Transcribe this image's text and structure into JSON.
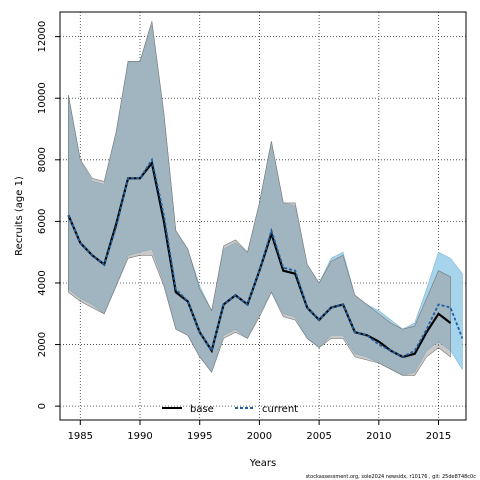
{
  "chart_data": {
    "type": "line",
    "title": "",
    "xlabel": "Years",
    "ylabel": "Recruits (age 1)",
    "xlim": [
      1983.3,
      2017.3
    ],
    "ylim": [
      -450,
      12800
    ],
    "x_ticks": [
      1985,
      1990,
      1995,
      2000,
      2005,
      2010,
      2015
    ],
    "x_tick_labels": [
      "1985",
      "1990",
      "1995",
      "2000",
      "2005",
      "2010",
      "2015"
    ],
    "y_ticks": [
      0,
      2000,
      4000,
      6000,
      8000,
      10000,
      12000
    ],
    "y_tick_labels": [
      "0",
      "2000",
      "4000",
      "6000",
      "8000",
      "10000",
      "12000"
    ],
    "grid": true,
    "legend": {
      "position": "bottom-center",
      "entries": [
        "base",
        "current"
      ]
    },
    "colors": {
      "base_line": "#000000",
      "base_band": "#9a9a9a",
      "current_line": "#1f5fa0",
      "current_band": "#a6d4ec",
      "overlap_band": "#8fb0c4",
      "grid": "#333333"
    },
    "series": [
      {
        "name": "base",
        "x": [
          1984,
          1985,
          1986,
          1987,
          1988,
          1989,
          1990,
          1991,
          1992,
          1993,
          1994,
          1995,
          1996,
          1997,
          1998,
          1999,
          2000,
          2001,
          2002,
          2003,
          2004,
          2005,
          2006,
          2007,
          2008,
          2009,
          2010,
          2011,
          2012,
          2013,
          2014,
          2015,
          2016
        ],
        "values": [
          6200,
          5300,
          4900,
          4600,
          5900,
          7400,
          7400,
          7900,
          6000,
          3700,
          3400,
          2400,
          1800,
          3300,
          3600,
          3300,
          4400,
          5600,
          4400,
          4300,
          3200,
          2800,
          3200,
          3300,
          2400,
          2300,
          2100,
          1800,
          1600,
          1700,
          2400,
          3000,
          2700
        ],
        "upper": [
          10100,
          8000,
          7400,
          7300,
          8900,
          11200,
          11200,
          12500,
          9500,
          5700,
          5100,
          3800,
          3100,
          5200,
          5400,
          5000,
          6600,
          8600,
          6600,
          6600,
          4600,
          4000,
          4700,
          4900,
          3600,
          3300,
          3000,
          2700,
          2500,
          2600,
          3500,
          4400,
          4200
        ],
        "lower": [
          3700,
          3400,
          3200,
          3000,
          3900,
          4800,
          4900,
          4900,
          3900,
          2500,
          2300,
          1600,
          1100,
          2200,
          2400,
          2200,
          2900,
          3700,
          2900,
          2800,
          2200,
          1900,
          2200,
          2200,
          1600,
          1500,
          1400,
          1200,
          1000,
          1000,
          1600,
          1900,
          1600
        ]
      },
      {
        "name": "current",
        "x": [
          1984,
          1985,
          1986,
          1987,
          1988,
          1989,
          1990,
          1991,
          1992,
          1993,
          1994,
          1995,
          1996,
          1997,
          1998,
          1999,
          2000,
          2001,
          2002,
          2003,
          2004,
          2005,
          2006,
          2007,
          2008,
          2009,
          2010,
          2011,
          2012,
          2013,
          2014,
          2015,
          2016,
          2017
        ],
        "values": [
          6200,
          5300,
          4900,
          4600,
          5800,
          7400,
          7400,
          8000,
          6200,
          3800,
          3400,
          2400,
          1800,
          3300,
          3600,
          3300,
          4400,
          5700,
          4500,
          4400,
          3200,
          2800,
          3200,
          3300,
          2400,
          2300,
          2000,
          1800,
          1600,
          1800,
          2500,
          3300,
          3200,
          2200
        ],
        "upper": [
          10100,
          8000,
          7300,
          7200,
          8900,
          11200,
          11200,
          12400,
          9500,
          5700,
          5100,
          3900,
          3100,
          5100,
          5300,
          5000,
          6600,
          8600,
          6600,
          6500,
          4600,
          4000,
          4800,
          5000,
          3600,
          3300,
          3100,
          2800,
          2500,
          2700,
          3800,
          5000,
          4800,
          4300
        ],
        "lower": [
          3800,
          3500,
          3300,
          3000,
          3900,
          4900,
          5000,
          5100,
          4000,
          2500,
          2300,
          1600,
          1100,
          2300,
          2500,
          2200,
          3000,
          3700,
          3000,
          2900,
          2200,
          1900,
          2300,
          2300,
          1700,
          1600,
          1400,
          1200,
          1000,
          1100,
          1800,
          2100,
          1800,
          1200
        ]
      }
    ]
  },
  "footnote": "stockassessment.org, sole2024 newsidx, r10176 , git: 25de8748c0c"
}
